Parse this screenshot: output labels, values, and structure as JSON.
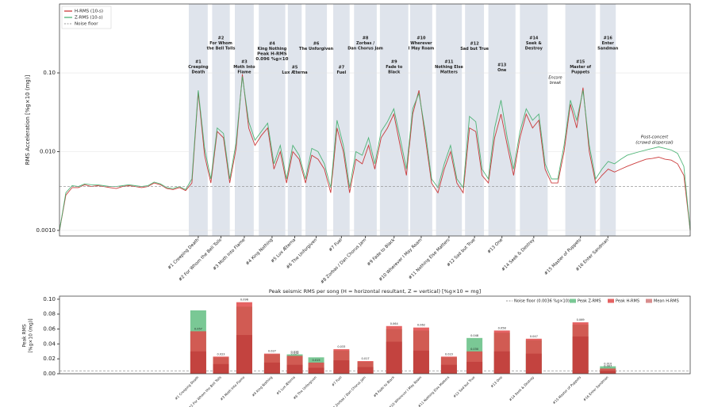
{
  "chart_data": [
    {
      "type": "line",
      "y_label": "RMS Acceleration  [%g×10 (mg)]",
      "log_y": true,
      "grid": true,
      "ylim": [
        0.00085,
        0.75
      ],
      "yticks": [
        {
          "value": 0.001,
          "label": "0.0010"
        },
        {
          "value": 0.01,
          "label": "0.010"
        },
        {
          "value": 0.1,
          "label": "0.10"
        }
      ],
      "noise_floor": {
        "name": "Noise floor",
        "value": 0.0036,
        "color": "#999999"
      },
      "legend": "upper left",
      "series": [
        {
          "name": "H-RMS (10-s)",
          "color": "#c62828",
          "values": [
            0.001,
            0.0028,
            0.0035,
            0.0035,
            0.0038,
            0.0036,
            0.0037,
            0.0036,
            0.0035,
            0.0034,
            0.0036,
            0.0037,
            0.0036,
            0.0035,
            0.0036,
            0.004,
            0.0038,
            0.0034,
            0.0033,
            0.0035,
            0.0032,
            0.004,
            0.057,
            0.009,
            0.004,
            0.018,
            0.015,
            0.004,
            0.011,
            0.096,
            0.02,
            0.012,
            0.016,
            0.02,
            0.006,
            0.01,
            0.004,
            0.01,
            0.008,
            0.004,
            0.009,
            0.008,
            0.006,
            0.003,
            0.02,
            0.01,
            0.003,
            0.008,
            0.007,
            0.012,
            0.006,
            0.015,
            0.02,
            0.03,
            0.012,
            0.005,
            0.03,
            0.06,
            0.015,
            0.004,
            0.003,
            0.006,
            0.01,
            0.004,
            0.003,
            0.02,
            0.018,
            0.005,
            0.004,
            0.015,
            0.03,
            0.012,
            0.005,
            0.015,
            0.03,
            0.02,
            0.025,
            0.006,
            0.004,
            0.004,
            0.01,
            0.04,
            0.02,
            0.065,
            0.01,
            0.004,
            0.005,
            0.006,
            0.0055,
            0.006,
            0.0065,
            0.007,
            0.0075,
            0.008,
            0.0082,
            0.0085,
            0.008,
            0.0078,
            0.007,
            0.005,
            0.001
          ]
        },
        {
          "name": "Z-RMS (10-s)",
          "color": "#3fae6a",
          "values": [
            0.001,
            0.003,
            0.0037,
            0.0036,
            0.0039,
            0.0038,
            0.0038,
            0.0037,
            0.0036,
            0.0036,
            0.0037,
            0.0038,
            0.0037,
            0.0036,
            0.0037,
            0.0041,
            0.0039,
            0.0035,
            0.0034,
            0.0036,
            0.0033,
            0.0045,
            0.06,
            0.011,
            0.0045,
            0.02,
            0.017,
            0.0045,
            0.013,
            0.09,
            0.024,
            0.014,
            0.018,
            0.023,
            0.007,
            0.012,
            0.0045,
            0.012,
            0.009,
            0.0045,
            0.011,
            0.01,
            0.007,
            0.0035,
            0.025,
            0.012,
            0.0035,
            0.01,
            0.009,
            0.015,
            0.007,
            0.018,
            0.024,
            0.035,
            0.015,
            0.006,
            0.035,
            0.055,
            0.018,
            0.0045,
            0.0035,
            0.007,
            0.012,
            0.0045,
            0.0035,
            0.028,
            0.024,
            0.006,
            0.0045,
            0.02,
            0.045,
            0.015,
            0.006,
            0.018,
            0.035,
            0.025,
            0.03,
            0.007,
            0.0045,
            0.0045,
            0.012,
            0.045,
            0.025,
            0.06,
            0.012,
            0.0045,
            0.006,
            0.0075,
            0.007,
            0.008,
            0.009,
            0.0095,
            0.01,
            0.0105,
            0.011,
            0.0115,
            0.011,
            0.0105,
            0.0095,
            0.0065,
            0.001
          ]
        }
      ],
      "songs": [
        {
          "start": 20.5,
          "end": 23.5,
          "title_lines": [
            "#1",
            "Creeping",
            "Death"
          ],
          "tick_label": "#1 Creeping Death"
        },
        {
          "start": 24.2,
          "end": 27,
          "title_lines": [
            "#2",
            "For Whom",
            "the Bell Tolls"
          ],
          "tick_label": "#2 For Whom the Bell Tolls"
        },
        {
          "start": 27.8,
          "end": 30.8,
          "title_lines": [
            "#3",
            "Moth Into",
            "Flame"
          ],
          "tick_label": "#3 Moth Into Flame"
        },
        {
          "start": 31.6,
          "end": 35.8,
          "title_lines": [
            "#4",
            "King Nothing"
          ],
          "tick_label": "#4 King Nothing"
        },
        {
          "start": 36.2,
          "end": 38.4,
          "title_lines": [
            "#5",
            "Lux Æterna"
          ],
          "tick_label": "#5 Lux Æterna"
        },
        {
          "start": 39,
          "end": 42.4,
          "title_lines": [
            "#6",
            "The Unforgiven"
          ],
          "tick_label": "#6 The Unforgiven"
        },
        {
          "start": 43.4,
          "end": 46,
          "title_lines": [
            "#7",
            "Fuel"
          ],
          "tick_label": "#7 Fuel"
        },
        {
          "start": 46.7,
          "end": 50.3,
          "title_lines": [
            "#8",
            "Zorbas /",
            "Dan Chorus Jam"
          ],
          "tick_label": "#8 Zorbas / Dan Chorus Jam"
        },
        {
          "start": 50.8,
          "end": 55.3,
          "title_lines": [
            "#9",
            "Fade to",
            "Black"
          ],
          "tick_label": "#9 Fade to Black"
        },
        {
          "start": 55.6,
          "end": 59.1,
          "title_lines": [
            "#10",
            "Wherever",
            "I May Roam"
          ],
          "tick_label": "#10 Wherever I May Roam"
        },
        {
          "start": 59.7,
          "end": 63.8,
          "title_lines": [
            "#11",
            "Nothing Else",
            "Matters"
          ],
          "tick_label": "#11 Nothing Else Matters"
        },
        {
          "start": 64.3,
          "end": 67.3,
          "title_lines": [
            "#12",
            "Sad but True"
          ],
          "tick_label": "#12 Sad but True"
        },
        {
          "start": 68,
          "end": 72.3,
          "title_lines": [
            "#13",
            "One"
          ],
          "tick_label": "#13 One"
        },
        {
          "start": 73,
          "end": 77.4,
          "title_lines": [
            "#14",
            "Seek &",
            "Destroy"
          ],
          "tick_label": "#14 Seek & Destroy"
        },
        {
          "start": 80.2,
          "end": 85,
          "title_lines": [
            "#15",
            "Master of",
            "Puppets"
          ],
          "tick_label": "#15 Master of Puppets"
        },
        {
          "start": 85.7,
          "end": 88.2,
          "title_lines": [
            "#16",
            "Enter",
            "Sandman"
          ],
          "tick_label": "#16 Enter Sandman"
        }
      ],
      "annotations": {
        "peak": [
          "Peak H-RMS",
          "0.096 %g×10"
        ],
        "encore": [
          "Encore",
          "break"
        ],
        "post": [
          "Post-concert",
          "(crowd dispersal)"
        ]
      }
    },
    {
      "type": "bar",
      "title": "Peak seismic RMS per song  (H = horizontal resultant, Z = vertical)  [%g×10 = mg]",
      "y_label": [
        "Peak RMS",
        "[%g×10 (mg)]"
      ],
      "ylim": [
        0,
        0.102
      ],
      "yticks": [
        {
          "value": 0,
          "label": "0.00"
        },
        {
          "value": 0.02,
          "label": "0.02"
        },
        {
          "value": 0.04,
          "label": "0.04"
        },
        {
          "value": 0.06,
          "label": "0.06"
        },
        {
          "value": 0.08,
          "label": "0.08"
        },
        {
          "value": 0.1,
          "label": "0.10"
        }
      ],
      "legend": "upper right",
      "noise_floor": {
        "name": "Noise floor (0.0036 %g×10)",
        "value": 0.0036,
        "color": "#999999"
      },
      "categories": [
        "#1 Creeping Death",
        "#2 For Whom the Bell Tolls",
        "#3 Moth Into Flame",
        "#4 King Nothing",
        "#5 Lux Æterna",
        "#6 The Unforgiven",
        "#7 Fuel",
        "#8 Zorbas / Dan Chorus Jam",
        "#9 Fade to Black",
        "#10 Wherever I May Roam",
        "#11 Nothing Else Matters",
        "#12 Sad but True",
        "#13 One",
        "#14 Seek & Destroy",
        "#15 Master of Puppets",
        "#16 Enter Sandman"
      ],
      "series": [
        {
          "name": "Peak Z-RMS",
          "color": "#6cc28a",
          "values": [
            0.085,
            0.022,
            0.09,
            0.026,
            0.026,
            0.022,
            0.031,
            0.016,
            0.06,
            0.058,
            0.022,
            0.048,
            0.055,
            0.045,
            0.066,
            0.01
          ],
          "value_labels": [
            null,
            null,
            null,
            null,
            "0.026",
            null,
            null,
            null,
            null,
            null,
            null,
            "0.048",
            null,
            null,
            null,
            "0.010"
          ]
        },
        {
          "name": "Peak H-RMS",
          "color": "#e04848",
          "values": [
            0.057,
            0.023,
            0.096,
            0.027,
            0.024,
            0.015,
            0.033,
            0.017,
            0.064,
            0.062,
            0.023,
            0.03,
            0.058,
            0.047,
            0.069,
            0.007
          ],
          "value_labels": [
            "0.057",
            "0.023",
            "0.096",
            "0.027",
            "0.024",
            "0.015",
            "0.033",
            "0.017",
            "0.064",
            "0.062",
            "0.023",
            "0.030",
            "0.058",
            "0.047",
            "0.069",
            "0.007"
          ]
        },
        {
          "name": "Mean H-RMS",
          "color": "#b83030",
          "values": [
            0.03,
            0.013,
            0.052,
            0.015,
            0.012,
            0.008,
            0.018,
            0.009,
            0.043,
            0.031,
            0.012,
            0.016,
            0.03,
            0.027,
            0.05,
            0.004
          ]
        }
      ]
    }
  ]
}
